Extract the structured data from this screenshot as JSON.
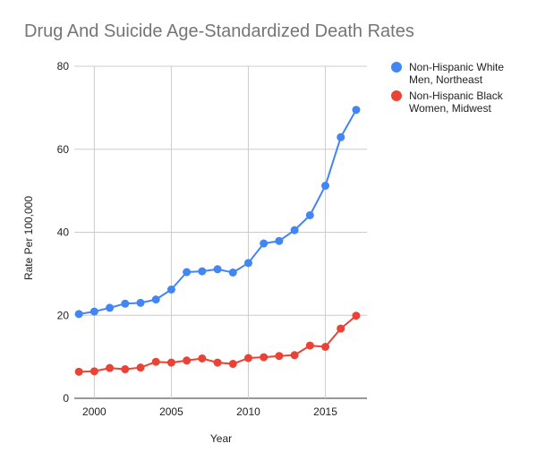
{
  "chart_data": {
    "type": "line",
    "title": "Drug And Suicide Age-Standardized Death Rates",
    "xlabel": "Year",
    "ylabel": "Rate Per 100,000",
    "xlim": [
      1998.7,
      2017.7
    ],
    "ylim": [
      0,
      80
    ],
    "xticks": [
      2000,
      2005,
      2010,
      2015
    ],
    "yticks": [
      0,
      20,
      40,
      60,
      80
    ],
    "grid": true,
    "legend_position": "right",
    "x": [
      1999,
      2000,
      2001,
      2002,
      2003,
      2004,
      2005,
      2006,
      2007,
      2008,
      2009,
      2010,
      2011,
      2012,
      2013,
      2014,
      2015,
      2016,
      2017
    ],
    "series": [
      {
        "name": "Non-Hispanic White Men, Northeast",
        "legend_lines": [
          "Non-Hispanic White",
          "Men, Northeast"
        ],
        "color": "#4285f4",
        "values": [
          20.3,
          20.9,
          21.8,
          22.8,
          23.0,
          23.8,
          26.2,
          30.4,
          30.6,
          31.1,
          30.3,
          32.6,
          37.3,
          37.9,
          40.5,
          44.1,
          51.2,
          62.9,
          69.5
        ]
      },
      {
        "name": "Non-Hispanic Black Women, Midwest",
        "legend_lines": [
          "Non-Hispanic Black",
          "Women, Midwest"
        ],
        "color": "#ea4335",
        "values": [
          6.4,
          6.5,
          7.3,
          7.0,
          7.4,
          8.8,
          8.6,
          9.1,
          9.6,
          8.6,
          8.3,
          9.7,
          9.9,
          10.2,
          10.4,
          12.7,
          12.4,
          16.8,
          19.9
        ]
      }
    ]
  }
}
